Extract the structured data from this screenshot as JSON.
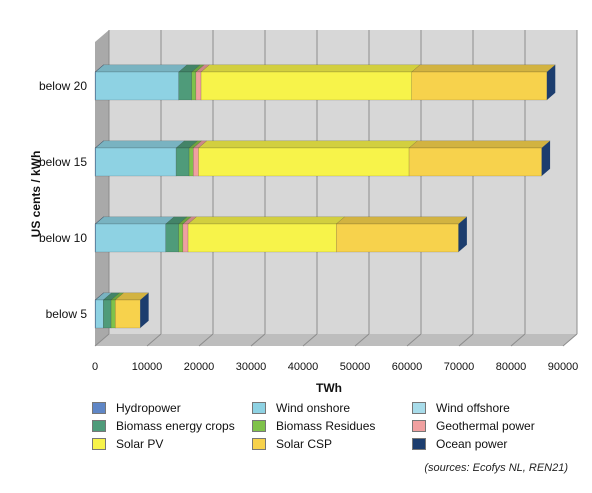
{
  "chart_data": {
    "type": "bar",
    "orientation": "horizontal",
    "stacked": true,
    "style": "3d",
    "categories": [
      "below 5",
      "below 10",
      "below 15",
      "below 20"
    ],
    "ylabel": "US cents / kWh",
    "xlabel": "TWh",
    "xlim": [
      0,
      90000
    ],
    "xticks": [
      "0",
      "10000",
      "20000",
      "30000",
      "40000",
      "50000",
      "60000",
      "70000",
      "80000",
      "90000"
    ],
    "grid": true,
    "legend_position": "bottom",
    "series": [
      {
        "name": "Hydropower",
        "color": "#5f86c6",
        "values": [
          100,
          100,
          100,
          100
        ]
      },
      {
        "name": "Wind onshore",
        "color": "#8ed2e3",
        "values": [
          1500,
          13500,
          15500,
          16000
        ]
      },
      {
        "name": "Wind offshore",
        "color": "#a8dcea",
        "values": [
          0,
          0,
          0,
          0
        ]
      },
      {
        "name": "Biomass energy crops",
        "color": "#4f9b7a",
        "values": [
          1500,
          2500,
          2500,
          2500
        ]
      },
      {
        "name": "Biomass Residues",
        "color": "#7fc24a",
        "values": [
          800,
          800,
          800,
          800
        ]
      },
      {
        "name": "Geothermal power",
        "color": "#f0a0a0",
        "values": [
          0,
          1000,
          1000,
          1000
        ]
      },
      {
        "name": "Solar PV",
        "color": "#f7f34a",
        "values": [
          0,
          28500,
          40500,
          40500
        ]
      },
      {
        "name": "Solar CSP",
        "color": "#f7d24c",
        "values": [
          4800,
          23500,
          25500,
          26000
        ]
      },
      {
        "name": "Ocean power",
        "color": "#1c3d6e",
        "values": [
          0,
          0,
          0,
          0
        ]
      }
    ]
  },
  "source": "(sources: Ecofys NL, REN21)"
}
